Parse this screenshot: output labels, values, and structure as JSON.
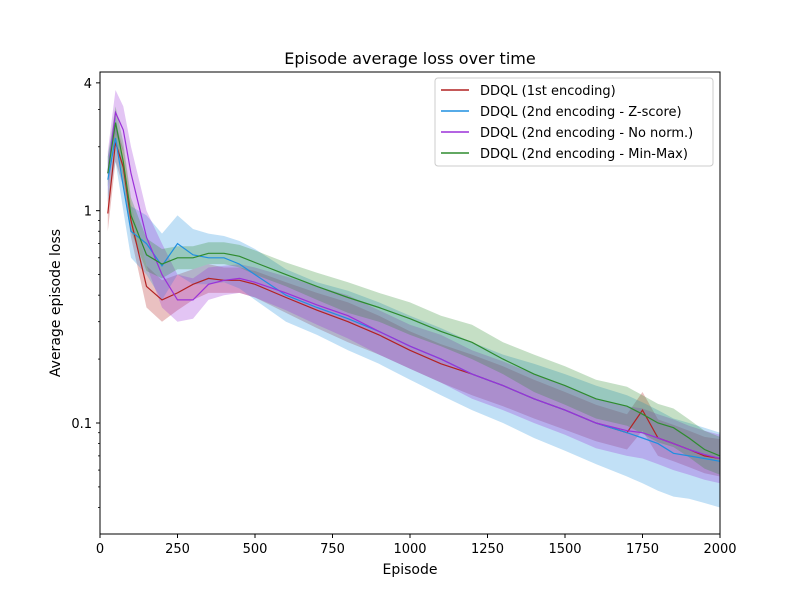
{
  "chart_data": {
    "type": "line",
    "title": "Episode average loss over time",
    "xlabel": "Episode",
    "ylabel": "Average episode loss",
    "xlim": [
      0,
      2000
    ],
    "ylim": [
      0.03,
      4.5
    ],
    "yscale": "log",
    "x_ticks": [
      0,
      250,
      500,
      750,
      1000,
      1250,
      1500,
      1750,
      2000
    ],
    "x_tick_labels": [
      "0",
      "250",
      "500",
      "750",
      "1000",
      "1250",
      "1500",
      "1750",
      "2000"
    ],
    "y_ticks": [
      4,
      1,
      0.1
    ],
    "y_tick_labels": [
      "4",
      "1",
      "0.1"
    ],
    "grid": false,
    "legend": "top-right",
    "x": [
      25,
      50,
      75,
      100,
      150,
      200,
      250,
      300,
      350,
      400,
      450,
      500,
      600,
      700,
      800,
      900,
      1000,
      1100,
      1200,
      1300,
      1400,
      1500,
      1600,
      1700,
      1750,
      1800,
      1850,
      1900,
      1950,
      2000
    ],
    "series": [
      {
        "name": "DDQL (1st encoding)",
        "color": "#b22222",
        "values": [
          0.97,
          2.1,
          1.6,
          0.9,
          0.44,
          0.38,
          0.41,
          0.45,
          0.48,
          0.47,
          0.47,
          0.45,
          0.39,
          0.34,
          0.3,
          0.26,
          0.22,
          0.19,
          0.17,
          0.15,
          0.13,
          0.115,
          0.1,
          0.09,
          0.115,
          0.085,
          0.08,
          0.075,
          0.07,
          0.068
        ],
        "lower": [
          0.8,
          1.7,
          1.3,
          0.75,
          0.35,
          0.3,
          0.34,
          0.38,
          0.41,
          0.41,
          0.41,
          0.39,
          0.33,
          0.28,
          0.24,
          0.21,
          0.18,
          0.155,
          0.135,
          0.12,
          0.105,
          0.093,
          0.082,
          0.075,
          0.092,
          0.07,
          0.066,
          0.062,
          0.058,
          0.056
        ],
        "upper": [
          1.2,
          2.6,
          1.95,
          1.1,
          0.55,
          0.47,
          0.5,
          0.53,
          0.56,
          0.54,
          0.54,
          0.52,
          0.46,
          0.41,
          0.37,
          0.32,
          0.27,
          0.235,
          0.21,
          0.185,
          0.16,
          0.14,
          0.122,
          0.11,
          0.14,
          0.104,
          0.098,
          0.092,
          0.086,
          0.084
        ]
      },
      {
        "name": "DDQL (2nd encoding - Z-score)",
        "color": "#1f8fe0",
        "values": [
          1.4,
          2.2,
          1.3,
          0.8,
          0.7,
          0.55,
          0.7,
          0.62,
          0.6,
          0.6,
          0.56,
          0.5,
          0.4,
          0.35,
          0.31,
          0.27,
          0.23,
          0.2,
          0.17,
          0.15,
          0.13,
          0.115,
          0.1,
          0.09,
          0.085,
          0.08,
          0.072,
          0.07,
          0.068,
          0.066
        ],
        "lower": [
          1.1,
          1.7,
          1.0,
          0.6,
          0.5,
          0.38,
          0.5,
          0.45,
          0.45,
          0.46,
          0.43,
          0.38,
          0.3,
          0.26,
          0.22,
          0.19,
          0.16,
          0.135,
          0.115,
          0.1,
          0.085,
          0.074,
          0.064,
          0.056,
          0.052,
          0.048,
          0.045,
          0.044,
          0.042,
          0.04
        ],
        "upper": [
          1.8,
          2.8,
          1.7,
          1.05,
          0.95,
          0.78,
          0.95,
          0.82,
          0.78,
          0.76,
          0.72,
          0.66,
          0.53,
          0.46,
          0.42,
          0.37,
          0.32,
          0.28,
          0.24,
          0.21,
          0.19,
          0.17,
          0.15,
          0.135,
          0.125,
          0.115,
          0.105,
          0.1,
          0.095,
          0.09
        ]
      },
      {
        "name": "DDQL (2nd encoding - No norm.)",
        "color": "#9b30d9",
        "values": [
          1.5,
          2.9,
          2.4,
          1.5,
          0.75,
          0.5,
          0.38,
          0.38,
          0.45,
          0.47,
          0.48,
          0.46,
          0.41,
          0.36,
          0.32,
          0.27,
          0.23,
          0.2,
          0.17,
          0.15,
          0.13,
          0.115,
          0.1,
          0.092,
          0.09,
          0.085,
          0.08,
          0.075,
          0.071,
          0.068
        ],
        "lower": [
          1.2,
          2.3,
          1.9,
          1.1,
          0.55,
          0.35,
          0.3,
          0.31,
          0.38,
          0.4,
          0.41,
          0.39,
          0.34,
          0.29,
          0.25,
          0.21,
          0.18,
          0.155,
          0.13,
          0.115,
          0.1,
          0.088,
          0.076,
          0.07,
          0.068,
          0.064,
          0.06,
          0.057,
          0.054,
          0.052
        ],
        "upper": [
          1.9,
          3.7,
          3.1,
          2.0,
          1.0,
          0.7,
          0.5,
          0.48,
          0.54,
          0.55,
          0.56,
          0.54,
          0.49,
          0.44,
          0.4,
          0.34,
          0.29,
          0.26,
          0.22,
          0.195,
          0.17,
          0.15,
          0.13,
          0.12,
          0.117,
          0.11,
          0.104,
          0.097,
          0.092,
          0.088
        ]
      },
      {
        "name": "DDQL (2nd encoding - Min-Max)",
        "color": "#2e8b2e",
        "values": [
          1.5,
          2.6,
          1.7,
          0.95,
          0.62,
          0.56,
          0.6,
          0.6,
          0.63,
          0.63,
          0.61,
          0.57,
          0.5,
          0.44,
          0.39,
          0.35,
          0.31,
          0.27,
          0.24,
          0.2,
          0.17,
          0.15,
          0.13,
          0.12,
          0.11,
          0.1,
          0.095,
          0.085,
          0.075,
          0.07
        ],
        "lower": [
          1.3,
          2.2,
          1.4,
          0.8,
          0.52,
          0.48,
          0.53,
          0.53,
          0.56,
          0.56,
          0.54,
          0.5,
          0.44,
          0.38,
          0.33,
          0.3,
          0.26,
          0.23,
          0.2,
          0.17,
          0.14,
          0.122,
          0.105,
          0.097,
          0.089,
          0.081,
          0.077,
          0.069,
          0.061,
          0.057
        ],
        "upper": [
          1.8,
          3.1,
          2.1,
          1.15,
          0.74,
          0.66,
          0.68,
          0.68,
          0.71,
          0.71,
          0.69,
          0.65,
          0.57,
          0.51,
          0.46,
          0.41,
          0.37,
          0.32,
          0.29,
          0.24,
          0.21,
          0.185,
          0.16,
          0.148,
          0.135,
          0.123,
          0.117,
          0.104,
          0.092,
          0.086
        ]
      }
    ]
  }
}
